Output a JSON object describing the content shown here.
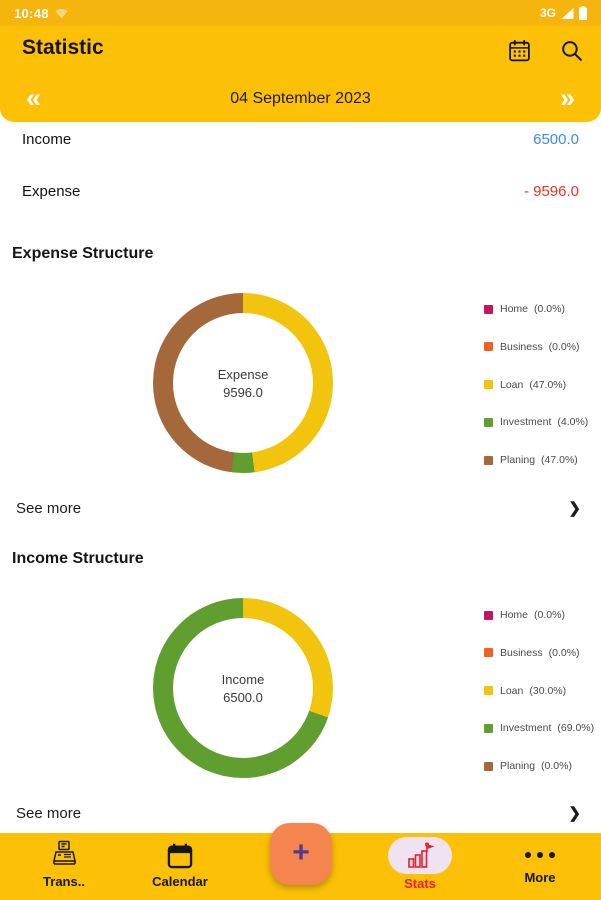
{
  "colors": {
    "status_bar_bg": "#F5B50E",
    "header_bg": "#FCC107",
    "income_value": "#3B8BEB",
    "expense_value": "#F03022",
    "fab_bg": "#F5854E",
    "fab_plus": "#533B8B",
    "stats_active": "#E8202A",
    "stats_pill_bg": "#EFE3F2"
  },
  "status_bar": {
    "time": "10:48",
    "network": "3G"
  },
  "header": {
    "title": "Statistic"
  },
  "date_nav": {
    "prev": "«",
    "date": "04 September 2023",
    "next": "»"
  },
  "summary": {
    "income_label": "Income",
    "income_value": "6500.0",
    "expense_label": "Expense",
    "expense_value": "- 9596.0"
  },
  "expense_section": {
    "title": "Expense Structure",
    "see_more": "See more",
    "chevron": "❯"
  },
  "income_section": {
    "title": "Income Structure",
    "see_more": "See more",
    "chevron": "❯"
  },
  "chart_data": [
    {
      "type": "pie",
      "name": "expense_structure",
      "title": "Expense Structure",
      "center": {
        "label": "Expense",
        "value": "9596.0"
      },
      "legend_position": "right",
      "segments": [
        {
          "label": "Home",
          "pct": 0.0,
          "color": "#C2185B"
        },
        {
          "label": "Business",
          "pct": 0.0,
          "color": "#F4611E"
        },
        {
          "label": "Loan",
          "pct": 47.0,
          "color": "#F2C40D"
        },
        {
          "label": "Investment",
          "pct": 4.0,
          "color": "#5F9E2F"
        },
        {
          "label": "Planing",
          "pct": 47.0,
          "color": "#A4683B"
        }
      ]
    },
    {
      "type": "pie",
      "name": "income_structure",
      "title": "Income Structure",
      "center": {
        "label": "Income",
        "value": "6500.0"
      },
      "legend_position": "right",
      "segments": [
        {
          "label": "Home",
          "pct": 0.0,
          "color": "#C2185B"
        },
        {
          "label": "Business",
          "pct": 0.0,
          "color": "#F4611E"
        },
        {
          "label": "Loan",
          "pct": 30.0,
          "color": "#F2C40D"
        },
        {
          "label": "Investment",
          "pct": 69.0,
          "color": "#5F9E2F"
        },
        {
          "label": "Planing",
          "pct": 0.0,
          "color": "#A4683B"
        }
      ]
    }
  ],
  "bottom_nav": {
    "items": [
      {
        "label": "Trans.."
      },
      {
        "label": "Calendar"
      },
      {
        "label": "Stats"
      },
      {
        "label": "More"
      }
    ],
    "fab_label": "+"
  }
}
